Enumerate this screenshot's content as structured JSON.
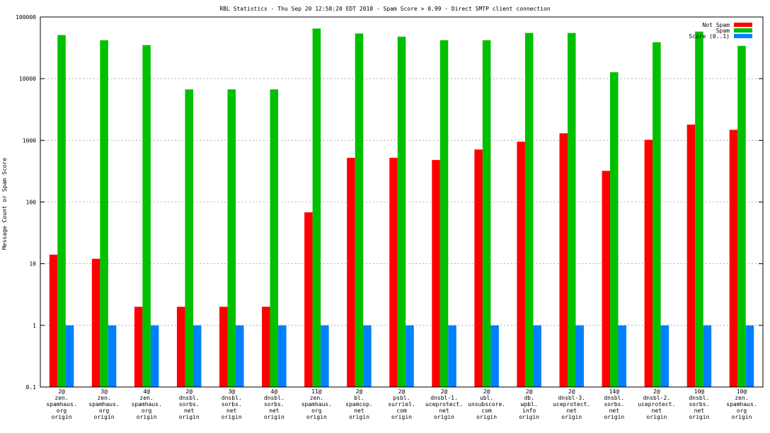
{
  "chart_data": {
    "type": "bar",
    "title": "RBL Statistics - Thu Sep 20 12:58:20 EDT 2018 - Spam Score > 0.99 - Direct SMTP client connection",
    "ylabel": "Message Count or Spam Score",
    "xlabel": "",
    "yscale": "log",
    "ylim": [
      0.1,
      100000
    ],
    "yticks": [
      "0.1",
      "1",
      "10",
      "100",
      "1000",
      "10000",
      "100000"
    ],
    "grid": true,
    "legend_position": "top-right",
    "categories": [
      [
        "2@",
        "zen.",
        "spamhaus.",
        "org",
        "origin"
      ],
      [
        "3@",
        "zen.",
        "spamhaus.",
        "org",
        "origin"
      ],
      [
        "4@",
        "zen.",
        "spamhaus.",
        "org",
        "origin"
      ],
      [
        "2@",
        "dnsbl.",
        "sorbs.",
        "net",
        "origin"
      ],
      [
        "3@",
        "dnsbl.",
        "sorbs.",
        "net",
        "origin"
      ],
      [
        "4@",
        "dnsbl.",
        "sorbs.",
        "net",
        "origin"
      ],
      [
        "11@",
        "zen.",
        "spamhaus.",
        "org",
        "origin"
      ],
      [
        "2@",
        "bl.",
        "spamcop.",
        "net",
        "origin"
      ],
      [
        "2@",
        "psbl.",
        "surriel.",
        "com",
        "origin"
      ],
      [
        "2@",
        "dnsbl-1.",
        "uceprotect.",
        "net",
        "origin"
      ],
      [
        "2@",
        "ubl.",
        "unsubscore.",
        "com",
        "origin"
      ],
      [
        "2@",
        "db.",
        "wpbl.",
        "info",
        "origin"
      ],
      [
        "2@",
        "dnsbl-3.",
        "uceprotect.",
        "net",
        "origin"
      ],
      [
        "14@",
        "dnsbl.",
        "sorbs.",
        "net",
        "origin"
      ],
      [
        "2@",
        "dnsbl-2.",
        "uceprotect.",
        "net",
        "origin"
      ],
      [
        "10@",
        "dnsbl.",
        "sorbs.",
        "net",
        "origin"
      ],
      [
        "10@",
        "zen.",
        "spamhaus.",
        "org",
        "origin"
      ]
    ],
    "series": [
      {
        "name": "Not Spam",
        "color": "#ff0000",
        "values": [
          14,
          12,
          2,
          2,
          2,
          2,
          68,
          520,
          520,
          480,
          710,
          950,
          1300,
          320,
          1020,
          1800,
          1480
        ]
      },
      {
        "name": "Spam",
        "color": "#00c000",
        "values": [
          51000,
          42000,
          35000,
          6700,
          6700,
          6700,
          65000,
          54000,
          48000,
          42000,
          42000,
          55000,
          55000,
          12700,
          39000,
          58000,
          34000
        ]
      },
      {
        "name": "Score (0..1)",
        "color": "#0080ff",
        "values": [
          1,
          1,
          1,
          1,
          1,
          1,
          1,
          1,
          1,
          1,
          1,
          1,
          1,
          1,
          1,
          1,
          1
        ]
      }
    ]
  }
}
